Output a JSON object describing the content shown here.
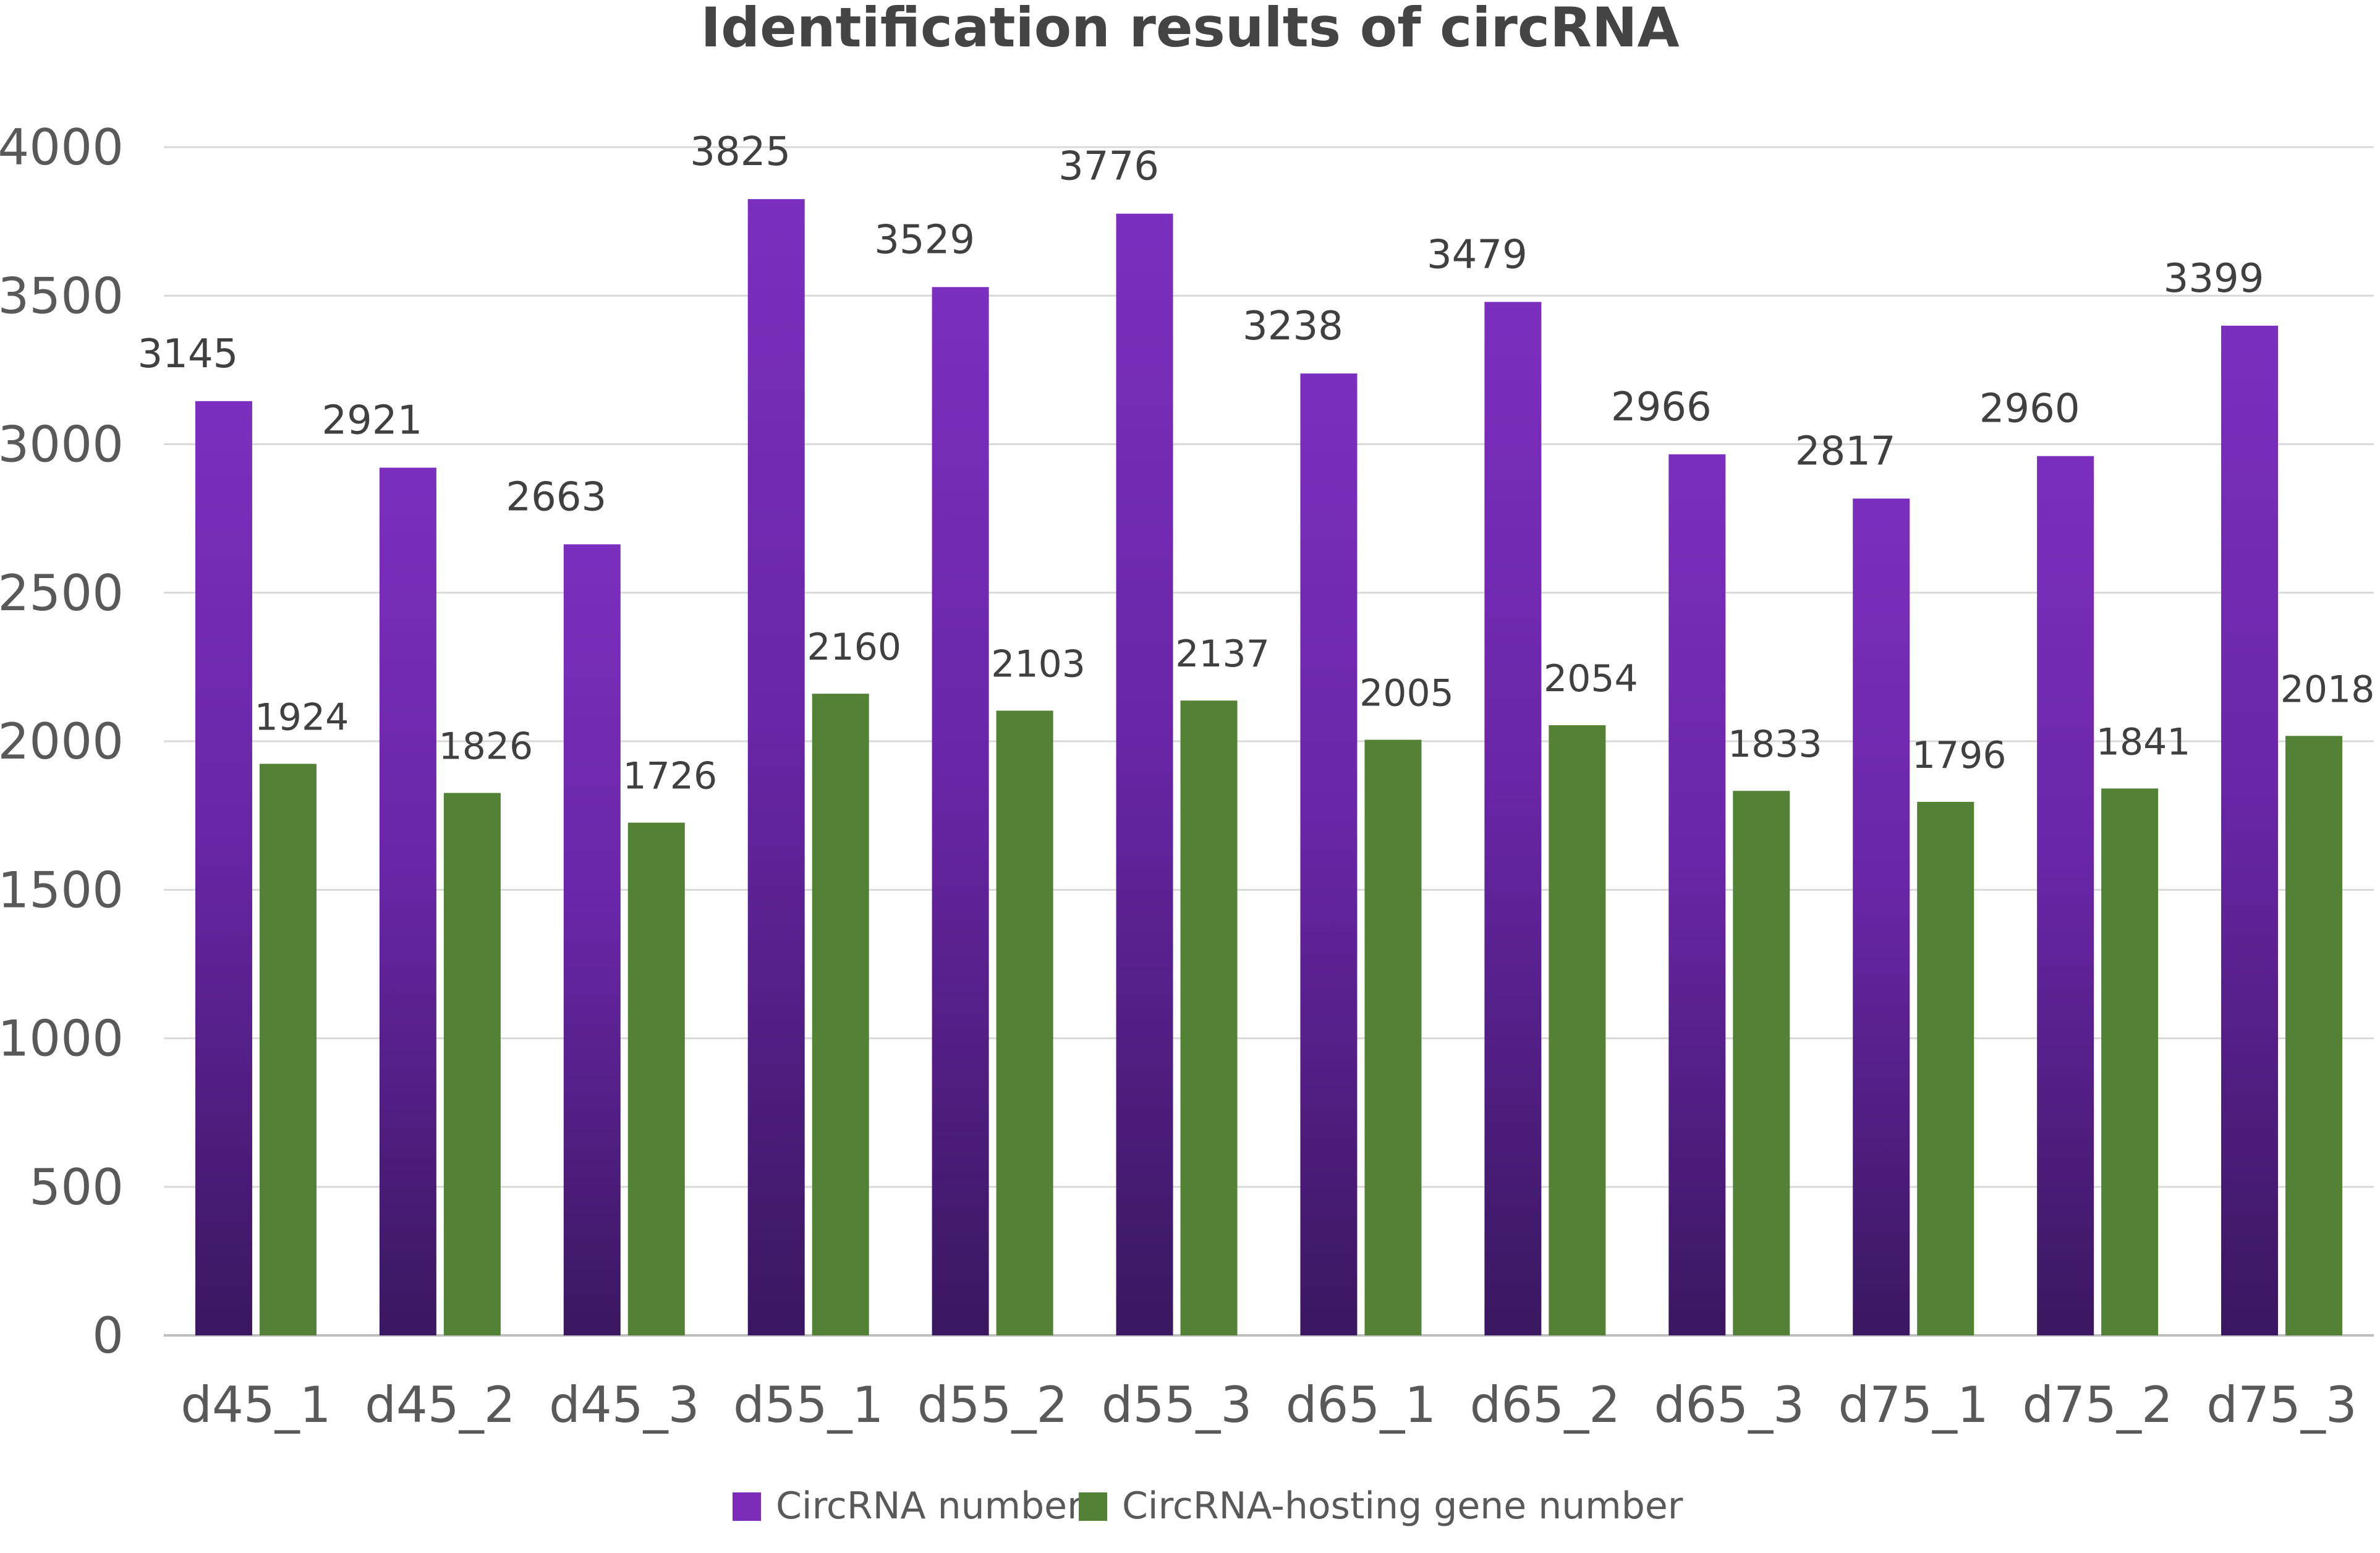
{
  "chart_data": {
    "type": "bar",
    "title": "Identification results of circRNA",
    "xlabel": "",
    "ylabel": "",
    "ylim": [
      0,
      4000
    ],
    "yticks": [
      0,
      500,
      1000,
      1500,
      2000,
      2500,
      3000,
      3500,
      4000
    ],
    "grid": true,
    "legend_position": "bottom",
    "categories": [
      "d45_1",
      "d45_2",
      "d45_3",
      "d55_1",
      "d55_2",
      "d55_3",
      "d65_1",
      "d65_2",
      "d65_3",
      "d75_1",
      "d75_2",
      "d75_3"
    ],
    "series": [
      {
        "name": "CircRNA number",
        "color": "#7B2CB8",
        "values": [
          3145,
          2921,
          2663,
          3825,
          3529,
          3776,
          3238,
          3479,
          2966,
          2817,
          2960,
          3399
        ]
      },
      {
        "name": "CircRNA-hosting gene number",
        "color": "#538135",
        "values": [
          1924,
          1826,
          1726,
          2160,
          2103,
          2137,
          2005,
          2054,
          1833,
          1796,
          1841,
          2018
        ]
      }
    ]
  }
}
